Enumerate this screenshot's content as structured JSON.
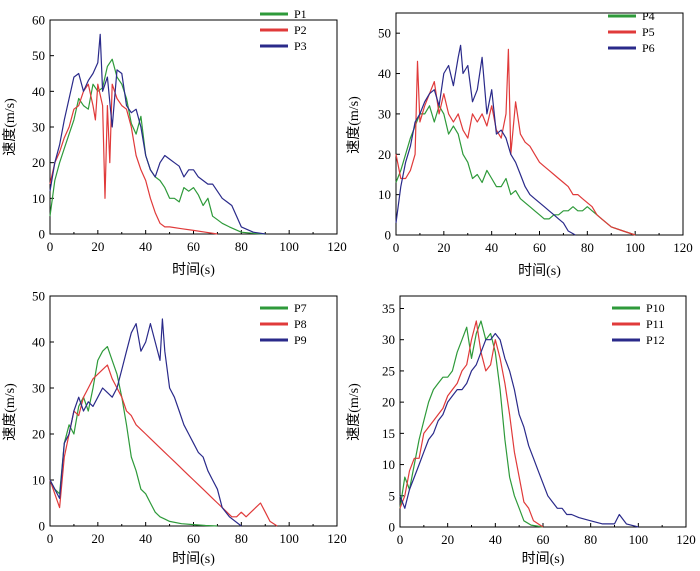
{
  "chart_data": [
    {
      "type": "line",
      "xlabel": "时间(s)",
      "ylabel": "速度(m/s)",
      "xlim": [
        0,
        120
      ],
      "ylim": [
        0,
        60
      ],
      "xticks": [
        "0",
        "20",
        "40",
        "60",
        "80",
        "100",
        "120"
      ],
      "yticks": [
        "0",
        "10",
        "20",
        "30",
        "40",
        "50",
        "60"
      ],
      "legend_position": "top-right",
      "series": [
        {
          "name": "P1",
          "color": "#2e9a3a",
          "x": [
            0,
            2,
            4,
            6,
            8,
            10,
            12,
            14,
            16,
            18,
            20,
            22,
            24,
            26,
            28,
            30,
            32,
            34,
            36,
            38,
            40,
            42,
            44,
            46,
            48,
            50,
            52,
            54,
            56,
            58,
            60,
            62,
            64,
            66,
            68,
            70,
            72,
            75,
            80,
            85,
            90
          ],
          "y": [
            5,
            15,
            20,
            24,
            28,
            32,
            38,
            36,
            35,
            42,
            40,
            41,
            47,
            49,
            44,
            42,
            38,
            31,
            28,
            33,
            22,
            18,
            16,
            15,
            13,
            10,
            10,
            9,
            13,
            12,
            13,
            11,
            8,
            10,
            5,
            4,
            3,
            2,
            0.5,
            0.2,
            0
          ]
        },
        {
          "name": "P2",
          "color": "#e03a3a",
          "x": [
            0,
            2,
            4,
            6,
            8,
            10,
            12,
            14,
            16,
            18,
            19,
            20,
            22,
            23,
            24,
            25,
            26,
            28,
            30,
            32,
            34,
            36,
            38,
            40,
            42,
            44,
            46,
            48,
            50,
            55,
            60,
            65,
            70
          ],
          "y": [
            14,
            20,
            23,
            27,
            30,
            35,
            36,
            40,
            42,
            36,
            32,
            42,
            36,
            10,
            36,
            20,
            42,
            38,
            36,
            35,
            30,
            22,
            18,
            15,
            10,
            6,
            3,
            2,
            2,
            1.5,
            1,
            0.5,
            0
          ]
        },
        {
          "name": "P3",
          "color": "#2a2a8a",
          "x": [
            0,
            2,
            4,
            6,
            8,
            10,
            12,
            14,
            16,
            18,
            20,
            21,
            22,
            24,
            26,
            28,
            30,
            32,
            34,
            36,
            38,
            40,
            42,
            44,
            46,
            48,
            50,
            52,
            54,
            56,
            58,
            60,
            62,
            64,
            66,
            68,
            70,
            72,
            74,
            76,
            78,
            80,
            85,
            90
          ],
          "y": [
            12,
            20,
            25,
            32,
            38,
            44,
            45,
            40,
            43,
            45,
            48,
            56,
            40,
            44,
            30,
            46,
            45,
            36,
            34,
            35,
            30,
            22,
            18,
            16,
            20,
            22,
            21,
            20,
            19,
            16,
            18,
            18,
            16,
            15,
            14,
            14,
            12,
            10,
            9,
            8,
            5,
            2,
            0.5,
            0
          ]
        }
      ]
    },
    {
      "type": "line",
      "xlabel": "时间(s)",
      "ylabel": "速度(m/s)",
      "xlim": [
        0,
        120
      ],
      "ylim": [
        0,
        55
      ],
      "xticks": [
        "0",
        "20",
        "40",
        "60",
        "80",
        "100",
        "120"
      ],
      "yticks": [
        "0",
        "10",
        "20",
        "30",
        "40",
        "50"
      ],
      "legend_position": "top-right",
      "series": [
        {
          "name": "P4",
          "color": "#2e9a3a",
          "x": [
            0,
            2,
            4,
            6,
            8,
            10,
            12,
            14,
            16,
            18,
            20,
            22,
            24,
            26,
            28,
            30,
            32,
            34,
            36,
            38,
            40,
            42,
            44,
            46,
            48,
            50,
            52,
            54,
            56,
            58,
            60,
            62,
            64,
            66,
            68,
            70,
            72,
            74,
            76,
            78,
            80,
            82,
            84,
            86,
            88,
            90,
            95,
            100
          ],
          "y": [
            13,
            16,
            20,
            24,
            27,
            30,
            30,
            32,
            28,
            32,
            30,
            25,
            27,
            25,
            20,
            18,
            14,
            15,
            13,
            16,
            14,
            12,
            12,
            14,
            10,
            11,
            9,
            8,
            7,
            6,
            5,
            4,
            4,
            5,
            5,
            6,
            6,
            7,
            6,
            6,
            7,
            6,
            5,
            4,
            3,
            2,
            1,
            0
          ]
        },
        {
          "name": "P5",
          "color": "#e03a3a",
          "x": [
            0,
            2,
            4,
            6,
            8,
            9,
            10,
            12,
            14,
            16,
            18,
            20,
            22,
            24,
            26,
            28,
            30,
            32,
            34,
            36,
            38,
            40,
            42,
            44,
            46,
            47,
            48,
            50,
            52,
            54,
            56,
            58,
            60,
            62,
            64,
            66,
            68,
            70,
            72,
            74,
            76,
            78,
            80,
            82,
            84,
            86,
            88,
            90,
            95,
            100
          ],
          "y": [
            20,
            14,
            14,
            16,
            20,
            43,
            28,
            32,
            35,
            38,
            30,
            35,
            30,
            28,
            30,
            26,
            24,
            30,
            28,
            30,
            27,
            32,
            26,
            24,
            30,
            46,
            20,
            33,
            25,
            23,
            22,
            20,
            18,
            17,
            16,
            15,
            14,
            13,
            12,
            10,
            10,
            9,
            8,
            7,
            5,
            4,
            3,
            2,
            1,
            0
          ]
        },
        {
          "name": "P6",
          "color": "#2a2a8a",
          "x": [
            0,
            2,
            4,
            6,
            8,
            10,
            12,
            14,
            16,
            18,
            20,
            22,
            24,
            26,
            27,
            28,
            30,
            32,
            34,
            36,
            38,
            40,
            42,
            44,
            46,
            48,
            50,
            52,
            54,
            56,
            58,
            60,
            62,
            64,
            66,
            68,
            70,
            72,
            75
          ],
          "y": [
            3,
            12,
            18,
            22,
            28,
            30,
            33,
            35,
            36,
            32,
            40,
            42,
            37,
            44,
            47,
            40,
            42,
            33,
            36,
            44,
            30,
            36,
            25,
            26,
            24,
            20,
            18,
            15,
            12,
            10,
            9,
            8,
            7,
            6,
            5,
            4,
            3,
            1,
            0
          ]
        }
      ]
    },
    {
      "type": "line",
      "xlabel": "时间(s)",
      "ylabel": "速度(m/s)",
      "xlim": [
        0,
        120
      ],
      "ylim": [
        0,
        50
      ],
      "xticks": [
        "0",
        "20",
        "40",
        "60",
        "80",
        "100",
        "120"
      ],
      "yticks": [
        "0",
        "10",
        "20",
        "30",
        "40",
        "50"
      ],
      "legend_position": "top-right",
      "series": [
        {
          "name": "P7",
          "color": "#2e9a3a",
          "x": [
            0,
            2,
            4,
            6,
            8,
            10,
            12,
            14,
            16,
            18,
            20,
            22,
            24,
            26,
            28,
            30,
            32,
            34,
            36,
            38,
            40,
            42,
            44,
            46,
            48,
            50,
            55,
            60,
            65,
            70
          ],
          "y": [
            10,
            8,
            7,
            18,
            22,
            20,
            26,
            28,
            25,
            30,
            36,
            38,
            39,
            36,
            33,
            28,
            22,
            15,
            12,
            8,
            7,
            5,
            3,
            2,
            1.5,
            1,
            0.5,
            0.3,
            0.1,
            0
          ]
        },
        {
          "name": "P8",
          "color": "#e03a3a",
          "x": [
            0,
            2,
            4,
            6,
            8,
            10,
            12,
            14,
            16,
            18,
            20,
            22,
            24,
            26,
            28,
            30,
            32,
            34,
            36,
            38,
            40,
            42,
            44,
            46,
            48,
            50,
            52,
            54,
            56,
            58,
            60,
            62,
            64,
            66,
            68,
            70,
            72,
            74,
            76,
            78,
            80,
            82,
            84,
            86,
            88,
            90,
            92,
            95
          ],
          "y": [
            10,
            7,
            4,
            15,
            20,
            25,
            24,
            28,
            30,
            32,
            33,
            34,
            35,
            32,
            30,
            28,
            25,
            24,
            22,
            21,
            20,
            19,
            18,
            17,
            16,
            15,
            14,
            13,
            12,
            11,
            10,
            9,
            8,
            7,
            6,
            5,
            4,
            3,
            2,
            2,
            3,
            2,
            3,
            4,
            5,
            3,
            1,
            0
          ]
        },
        {
          "name": "P9",
          "color": "#2a2a8a",
          "x": [
            0,
            2,
            4,
            6,
            8,
            10,
            12,
            14,
            16,
            18,
            20,
            22,
            24,
            26,
            28,
            30,
            32,
            34,
            36,
            38,
            40,
            42,
            44,
            46,
            47,
            48,
            50,
            52,
            54,
            56,
            58,
            60,
            62,
            64,
            66,
            68,
            70,
            72,
            75,
            80
          ],
          "y": [
            10,
            8,
            6,
            18,
            20,
            25,
            28,
            25,
            27,
            26,
            28,
            30,
            29,
            28,
            30,
            34,
            38,
            42,
            44,
            38,
            40,
            44,
            40,
            36,
            45,
            38,
            30,
            28,
            25,
            22,
            20,
            18,
            16,
            15,
            12,
            10,
            8,
            4,
            2,
            0
          ]
        }
      ]
    },
    {
      "type": "line",
      "xlabel": "时间(s)",
      "ylabel": "速度(m/s)",
      "xlim": [
        0,
        120
      ],
      "ylim": [
        0,
        37
      ],
      "xticks": [
        "0",
        "20",
        "40",
        "60",
        "80",
        "100",
        "120"
      ],
      "yticks": [
        "0",
        "5",
        "10",
        "15",
        "20",
        "25",
        "30",
        "35"
      ],
      "legend_position": "top-right",
      "series": [
        {
          "name": "P10",
          "color": "#2e9a3a",
          "x": [
            0,
            2,
            4,
            6,
            8,
            10,
            12,
            14,
            16,
            18,
            20,
            22,
            24,
            26,
            28,
            30,
            32,
            34,
            36,
            38,
            40,
            42,
            44,
            46,
            48,
            50,
            52,
            55,
            60
          ],
          "y": [
            3,
            8,
            6,
            10,
            14,
            17,
            20,
            22,
            23,
            24,
            24,
            25,
            28,
            30,
            32,
            27,
            31,
            33,
            30,
            31,
            28,
            22,
            14,
            8,
            5,
            3,
            1,
            0.3,
            0
          ]
        },
        {
          "name": "P11",
          "color": "#e03a3a",
          "x": [
            0,
            2,
            4,
            6,
            8,
            10,
            12,
            14,
            16,
            18,
            20,
            22,
            24,
            26,
            28,
            30,
            32,
            34,
            36,
            38,
            40,
            42,
            44,
            46,
            48,
            50,
            52,
            54,
            56,
            60
          ],
          "y": [
            3,
            5,
            9,
            11,
            11,
            15,
            16,
            17,
            18,
            19,
            21,
            22,
            23,
            25,
            26,
            30,
            33,
            28,
            25,
            26,
            30,
            27,
            23,
            18,
            12,
            8,
            4,
            3,
            1,
            0
          ]
        },
        {
          "name": "P12",
          "color": "#2a2a8a",
          "x": [
            0,
            2,
            4,
            6,
            8,
            10,
            12,
            14,
            16,
            18,
            20,
            22,
            24,
            26,
            28,
            30,
            32,
            34,
            36,
            38,
            40,
            42,
            44,
            46,
            48,
            50,
            52,
            54,
            56,
            58,
            60,
            62,
            64,
            66,
            68,
            70,
            72,
            75,
            80,
            85,
            90,
            92,
            95,
            100
          ],
          "y": [
            5,
            3,
            6,
            8,
            10,
            12,
            14,
            15,
            17,
            18,
            20,
            21,
            22,
            22,
            23,
            25,
            26,
            28,
            30,
            30,
            31,
            30,
            27,
            25,
            22,
            18,
            16,
            13,
            11,
            9,
            7,
            5,
            4,
            3,
            3,
            2,
            2,
            1.5,
            1,
            0.5,
            0.5,
            2,
            0.5,
            0
          ]
        }
      ]
    }
  ]
}
